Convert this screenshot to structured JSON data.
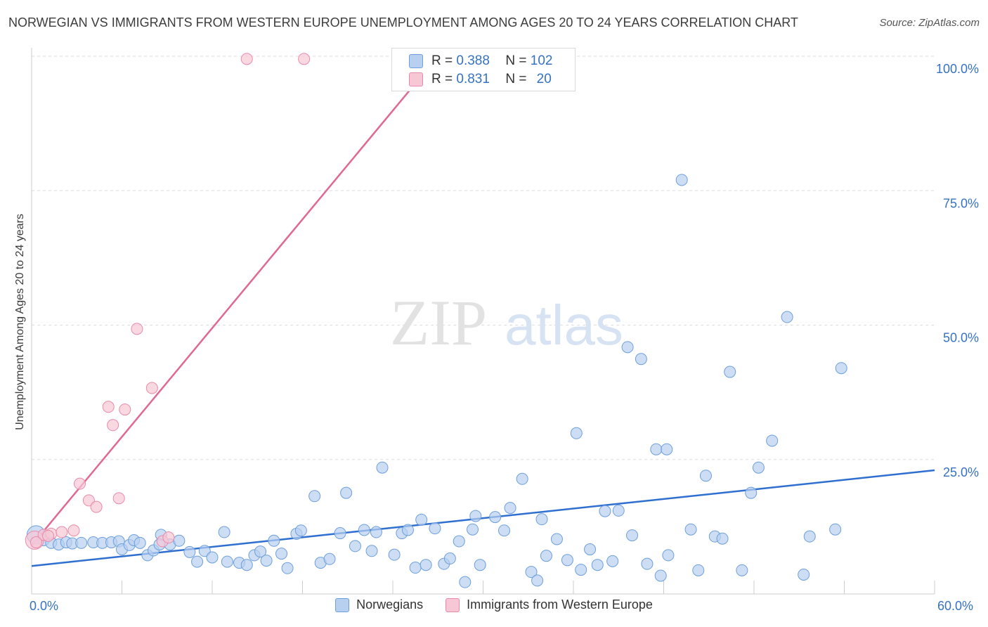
{
  "title": "NORWEGIAN VS IMMIGRANTS FROM WESTERN EUROPE UNEMPLOYMENT AMONG AGES 20 TO 24 YEARS CORRELATION CHART",
  "source": "Source: ZipAtlas.com",
  "watermark": {
    "zip": "ZIP",
    "atlas": "atlas"
  },
  "colors": {
    "blue_fill": "#b8d0f0",
    "blue_stroke": "#6d9fdc",
    "blue_line": "#2f6fcf",
    "pink_fill": "#f7c7d6",
    "pink_stroke": "#e88aaa",
    "pink_line": "#e06894",
    "axis_text": "#3672c4",
    "grid": "#dddddd"
  },
  "stats": [
    {
      "series": "Norwegians",
      "r_label": "R =",
      "r": "0.388",
      "n_label": "N =",
      "n": "102"
    },
    {
      "series": "Immigrants from Western Europe",
      "r_label": "R =",
      "r": "0.831",
      "n_label": "N =",
      "n": "20"
    }
  ],
  "chart_data": {
    "type": "scatter",
    "title": "NORWEGIAN VS IMMIGRANTS FROM WESTERN EUROPE UNEMPLOYMENT AMONG AGES 20 TO 24 YEARS CORRELATION CHART",
    "xlabel": "",
    "ylabel": "Unemployment Among Ages 20 to 24 years",
    "xlim": [
      0,
      60
    ],
    "ylim": [
      0,
      100
    ],
    "x_tick_labels": [
      "0.0%",
      "60.0%"
    ],
    "y_ticks": [
      25,
      50,
      75,
      100
    ],
    "y_tick_labels": [
      "25.0%",
      "50.0%",
      "75.0%",
      "100.0%"
    ],
    "grid": true,
    "legend": "bottom-center",
    "series": [
      {
        "name": "Norwegians",
        "trend": {
          "x": [
            0,
            60
          ],
          "y": [
            5.2,
            23.0
          ]
        },
        "points": [
          [
            0.3,
            11
          ],
          [
            0.8,
            10
          ],
          [
            1.3,
            9.5
          ],
          [
            1.8,
            9.2
          ],
          [
            2.3,
            9.6
          ],
          [
            2.7,
            9.4
          ],
          [
            3.3,
            9.5
          ],
          [
            4.1,
            9.6
          ],
          [
            4.7,
            9.5
          ],
          [
            5.3,
            9.6
          ],
          [
            5.8,
            9.8
          ],
          [
            6.0,
            8.3
          ],
          [
            6.5,
            9.1
          ],
          [
            6.8,
            10
          ],
          [
            7.2,
            9.5
          ],
          [
            7.7,
            7.2
          ],
          [
            8.1,
            8.1
          ],
          [
            8.6,
            11
          ],
          [
            8.5,
            9.2
          ],
          [
            9.2,
            9.2
          ],
          [
            9.8,
            9.9
          ],
          [
            10.5,
            7.8
          ],
          [
            11,
            6
          ],
          [
            11.5,
            8
          ],
          [
            12,
            6.8
          ],
          [
            12.8,
            11.5
          ],
          [
            13,
            6
          ],
          [
            13.8,
            5.8
          ],
          [
            14.3,
            5.4
          ],
          [
            14.8,
            7.2
          ],
          [
            15.2,
            7.9
          ],
          [
            15.6,
            6.2
          ],
          [
            16.1,
            9.9
          ],
          [
            16.6,
            7.5
          ],
          [
            17,
            4.8
          ],
          [
            17.6,
            11.2
          ],
          [
            17.9,
            11.8
          ],
          [
            18.8,
            18.2
          ],
          [
            19.2,
            5.8
          ],
          [
            19.8,
            6.5
          ],
          [
            20.5,
            11.3
          ],
          [
            20.9,
            18.8
          ],
          [
            21.5,
            8.9
          ],
          [
            22.1,
            11.9
          ],
          [
            22.6,
            8
          ],
          [
            22.9,
            11.5
          ],
          [
            23.3,
            23.5
          ],
          [
            24.1,
            7.3
          ],
          [
            24.6,
            11.3
          ],
          [
            25,
            11.9
          ],
          [
            25.5,
            4.9
          ],
          [
            25.9,
            13.8
          ],
          [
            26.2,
            5.4
          ],
          [
            26.8,
            12.2
          ],
          [
            27.4,
            5.6
          ],
          [
            27.8,
            6.6
          ],
          [
            28.4,
            9.8
          ],
          [
            28.8,
            2.2
          ],
          [
            29.3,
            12
          ],
          [
            29.5,
            14.5
          ],
          [
            29.8,
            5.4
          ],
          [
            30.8,
            14.3
          ],
          [
            31.4,
            11.8
          ],
          [
            31.8,
            16
          ],
          [
            32.6,
            21.4
          ],
          [
            33.2,
            4.1
          ],
          [
            33.6,
            2.5
          ],
          [
            33.9,
            13.9
          ],
          [
            34.2,
            7.1
          ],
          [
            34.9,
            10.2
          ],
          [
            35.6,
            6.3
          ],
          [
            36.2,
            29.9
          ],
          [
            36.5,
            4.5
          ],
          [
            37.1,
            8.3
          ],
          [
            37.6,
            5.4
          ],
          [
            38.1,
            15.4
          ],
          [
            38.6,
            6.1
          ],
          [
            39,
            15.5
          ],
          [
            39.6,
            45.9
          ],
          [
            39.9,
            10.9
          ],
          [
            40.5,
            43.7
          ],
          [
            40.9,
            5.6
          ],
          [
            41.5,
            26.9
          ],
          [
            41.8,
            3.4
          ],
          [
            42.2,
            26.9
          ],
          [
            42.3,
            7.2
          ],
          [
            43.2,
            77
          ],
          [
            43.8,
            12
          ],
          [
            44.3,
            4.4
          ],
          [
            44.8,
            22
          ],
          [
            45.4,
            10.7
          ],
          [
            45.9,
            10.3
          ],
          [
            46.4,
            41.3
          ],
          [
            47.2,
            4.4
          ],
          [
            47.8,
            18.8
          ],
          [
            48.3,
            23.5
          ],
          [
            49.2,
            28.5
          ],
          [
            50.2,
            51.5
          ],
          [
            51.3,
            3.6
          ],
          [
            51.7,
            10.7
          ],
          [
            53.4,
            12
          ],
          [
            53.8,
            42
          ]
        ]
      },
      {
        "name": "Immigrants from Western Europe",
        "trend": {
          "x": [
            0,
            27
          ],
          "y": [
            9,
            100
          ]
        },
        "points": [
          [
            0.2,
            10
          ],
          [
            0.8,
            11
          ],
          [
            1.3,
            11.2
          ],
          [
            2,
            11.5
          ],
          [
            2.8,
            11.8
          ],
          [
            3.2,
            20.5
          ],
          [
            3.8,
            17.4
          ],
          [
            4.3,
            16.2
          ],
          [
            5.1,
            34.8
          ],
          [
            5.4,
            31.4
          ],
          [
            5.8,
            17.8
          ],
          [
            6.2,
            34.3
          ],
          [
            7,
            49.3
          ],
          [
            8,
            38.3
          ],
          [
            8.7,
            9.8
          ],
          [
            9.1,
            10.5
          ],
          [
            14.3,
            99.5
          ],
          [
            18.1,
            99.5
          ],
          [
            0.3,
            9.6
          ],
          [
            1.1,
            10.8
          ]
        ]
      }
    ]
  }
}
